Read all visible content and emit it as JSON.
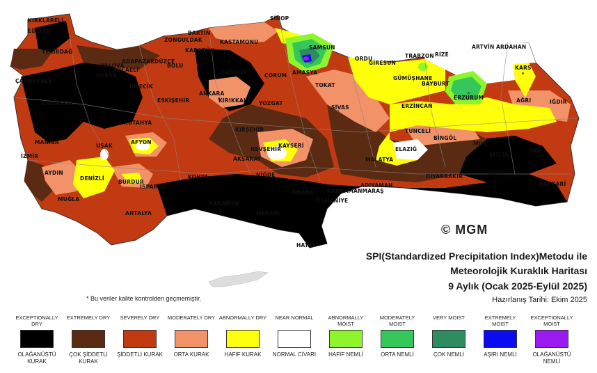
{
  "cities": [
    "KIRKLARELİ",
    "EDİRNE",
    "SİNOP",
    "BARTIN",
    "ZONGULDAK",
    "KASTAMONU",
    "KARABÜK",
    "BOLU",
    "DÜZCE",
    "ADAPAZARI",
    "SAMSUN",
    "ORDU",
    "GİRESUN",
    "TRABZON",
    "RİZE",
    "ARTVİN",
    "ARDAHAN",
    "KARS",
    "IĞDIR",
    "AĞRI",
    "ERZURUM",
    "BAYBURT",
    "GÜMÜŞHANE",
    "ERZİNCAN",
    "TOKAT",
    "AMASYA",
    "ÇORUM",
    "ÇANKIRI",
    "ANKARA",
    "KIRIKKALE",
    "YOZGAT",
    "SİVAS",
    "KIRŞEHİR",
    "NEVŞEHİR",
    "KAYSERİ",
    "AKSARAY",
    "NİĞDE",
    "KONYA",
    "KARAMAN",
    "AFYON",
    "UŞAK",
    "DENİZLİ",
    "AYDIN",
    "MUĞLA",
    "BURDUR",
    "ISPARTA",
    "ANTALYA",
    "BALIKESİR",
    "MANİSA",
    "İZMİR",
    "BİLECİK",
    "ESKİŞEHİR",
    "KÜTAHYA",
    "BURSA",
    "YALOVA",
    "KOCAELİ",
    "ÇANAKKALE",
    "TEKİRDAĞ",
    "MALATYA",
    "ELAZIĞ",
    "TUNCELİ",
    "BİNGÖL",
    "MUŞ",
    "BİTLİS",
    "SİİRT",
    "VAN",
    "HAKKARİ",
    "DİYARBAKIR",
    "ADIYAMAN",
    "KAHRAMANMARAŞ",
    "OSMANİYE",
    "ADANA",
    "MERSİN",
    "HATAY"
  ],
  "logo": "© MGM",
  "title": {
    "line1": "SPI(Standardized Precipitation Index)Metodu ile",
    "line2": "Meteorolojik Kuraklık Haritası",
    "line3": "9 Aylık (Ocak 2025-Eylül 2025)",
    "line4": "Hazırlanış Tarihi: Ekim 2025"
  },
  "note": "* Bu veriler kalite kontrolden geçmemiştir.",
  "legend": [
    {
      "en": "EXCEPTIONALLY DRY",
      "tr": "OLAĞANÜSTÜ KURAK",
      "color": "#000000"
    },
    {
      "en": "EXTREMELY DRY",
      "tr": "ÇOK ŞİDDETLİ KURAK",
      "color": "#5b2a13"
    },
    {
      "en": "SEVERELY DRY",
      "tr": "ŞİDDETLİ KURAK",
      "color": "#c23a12"
    },
    {
      "en": "MODERATELY DRY",
      "tr": "ORTA KURAK",
      "color": "#f29268"
    },
    {
      "en": "ABNORMALLY DRY",
      "tr": "HAFİF KURAK",
      "color": "#ffff0a"
    },
    {
      "en": "NEAR NORMAL",
      "tr": "NORMAL CİVARI",
      "color": "#ffffff"
    },
    {
      "en": "ABNORMALLY MOIST",
      "tr": "HAFİF NEMLİ",
      "color": "#8ef52c"
    },
    {
      "en": "MODERATELY MOIST",
      "tr": "ORTA NEMLİ",
      "color": "#35c75a"
    },
    {
      "en": "VERY MOIST",
      "tr": "ÇOK NEMLİ",
      "color": "#2f8c5e"
    },
    {
      "en": "EXTREMELY MOIST",
      "tr": "AŞIRI NEMLİ",
      "color": "#0b0bf0"
    },
    {
      "en": "EXCEPTIONALLY MOIST",
      "tr": "OLAĞANÜSTÜ NEMLİ",
      "color": "#9a1af0"
    }
  ]
}
